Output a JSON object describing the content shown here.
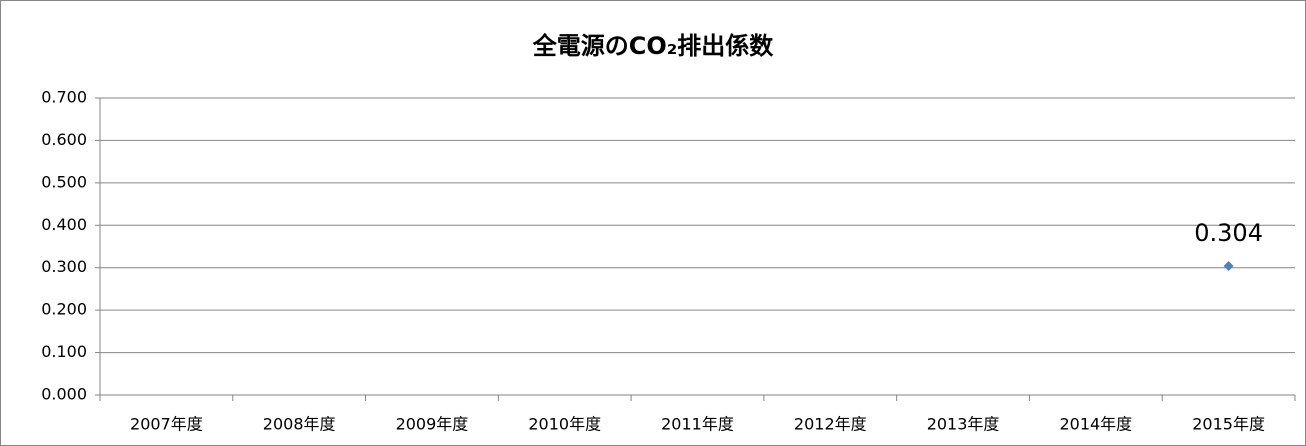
{
  "chart_data": {
    "type": "line",
    "title": "全電源のCO₂排出係数",
    "categories": [
      "2007年度",
      "2008年度",
      "2009年度",
      "2010年度",
      "2011年度",
      "2012年度",
      "2013年度",
      "2014年度",
      "2015年度"
    ],
    "series": [
      {
        "color": "#4f81bd",
        "values": [
          null,
          null,
          null,
          null,
          null,
          null,
          null,
          null,
          0.304
        ]
      }
    ],
    "ylim": [
      0,
      0.7
    ],
    "yticks": [
      {
        "value": 0,
        "label": "0.000"
      },
      {
        "value": 0.1,
        "label": "0.100"
      },
      {
        "value": 0.2,
        "label": "0.200"
      },
      {
        "value": 0.3,
        "label": "0.300"
      },
      {
        "value": 0.4,
        "label": "0.400"
      },
      {
        "value": 0.5,
        "label": "0.500"
      },
      {
        "value": 0.6,
        "label": "0.600"
      },
      {
        "value": 0.7,
        "label": "0.700"
      }
    ],
    "grid": true
  }
}
